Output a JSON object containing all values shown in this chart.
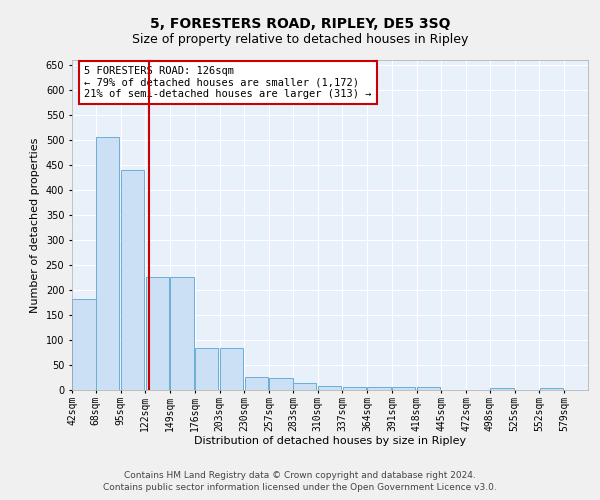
{
  "title": "5, FORESTERS ROAD, RIPLEY, DE5 3SQ",
  "subtitle": "Size of property relative to detached houses in Ripley",
  "xlabel": "Distribution of detached houses by size in Ripley",
  "ylabel": "Number of detached properties",
  "bar_color": "#cce0f5",
  "bar_edge_color": "#6aaed6",
  "background_color": "#e8f0fa",
  "fig_background": "#f0f0f0",
  "grid_color": "#ffffff",
  "vline_x": 126,
  "vline_color": "#cc0000",
  "annotation_text": "5 FORESTERS ROAD: 126sqm\n← 79% of detached houses are smaller (1,172)\n21% of semi-detached houses are larger (313) →",
  "annotation_box_color": "#ffffff",
  "annotation_box_edge": "#cc0000",
  "bins": [
    42,
    68,
    95,
    122,
    149,
    176,
    203,
    230,
    257,
    283,
    310,
    337,
    364,
    391,
    418,
    445,
    472,
    498,
    525,
    552,
    579
  ],
  "values": [
    183,
    507,
    440,
    226,
    226,
    84,
    84,
    27,
    25,
    14,
    9,
    7,
    6,
    7,
    7,
    0,
    0,
    5,
    0,
    5,
    0
  ],
  "ylim": [
    0,
    660
  ],
  "yticks": [
    0,
    50,
    100,
    150,
    200,
    250,
    300,
    350,
    400,
    450,
    500,
    550,
    600,
    650
  ],
  "footer_text": "Contains HM Land Registry data © Crown copyright and database right 2024.\nContains public sector information licensed under the Open Government Licence v3.0.",
  "title_fontsize": 10,
  "subtitle_fontsize": 9,
  "axis_label_fontsize": 8,
  "tick_fontsize": 7,
  "annotation_fontsize": 7.5,
  "footer_fontsize": 6.5
}
